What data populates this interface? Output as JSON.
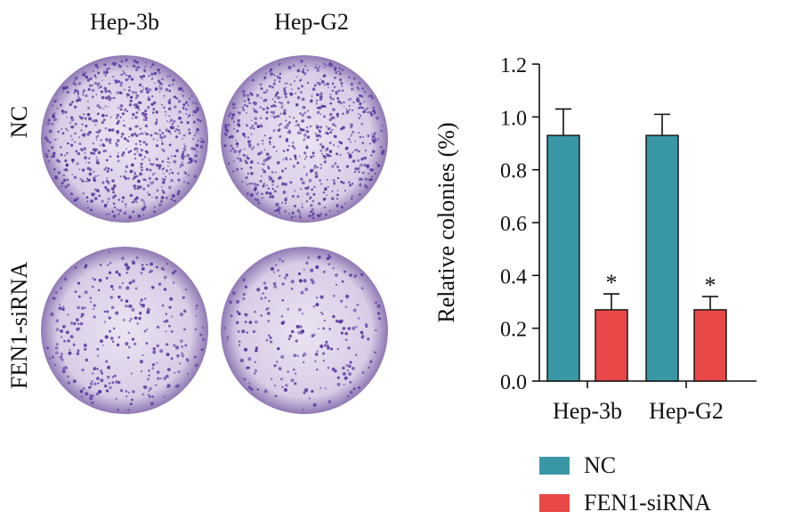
{
  "panel_a": {
    "columns": [
      "Hep-3b",
      "Hep-G2"
    ],
    "rows": [
      "NC",
      "FEN1-siRNA"
    ],
    "dish_color": "#5b3aa0",
    "dish_background": "#d9cde6",
    "dish_density": [
      [
        760,
        720
      ],
      [
        300,
        230
      ]
    ]
  },
  "chart_data": {
    "type": "bar",
    "categories": [
      "Hep-3b",
      "Hep-G2"
    ],
    "series": [
      {
        "name": "NC",
        "values": [
          0.93,
          0.93
        ],
        "errors": [
          0.1,
          0.08
        ],
        "color": "#3a97a6",
        "annotations": [
          "",
          ""
        ]
      },
      {
        "name": "FEN1-siRNA",
        "values": [
          0.27,
          0.27
        ],
        "errors": [
          0.06,
          0.05
        ],
        "color": "#e84848",
        "annotations": [
          "*",
          "*"
        ]
      }
    ],
    "ylabel": "Relative colonies (%)",
    "xlabel": "",
    "ylim": [
      0,
      1.2
    ],
    "yticks": [
      "0.0",
      "0.2",
      "0.4",
      "0.6",
      "0.8",
      "1.0",
      "1.2"
    ],
    "legend_position": "bottom"
  }
}
